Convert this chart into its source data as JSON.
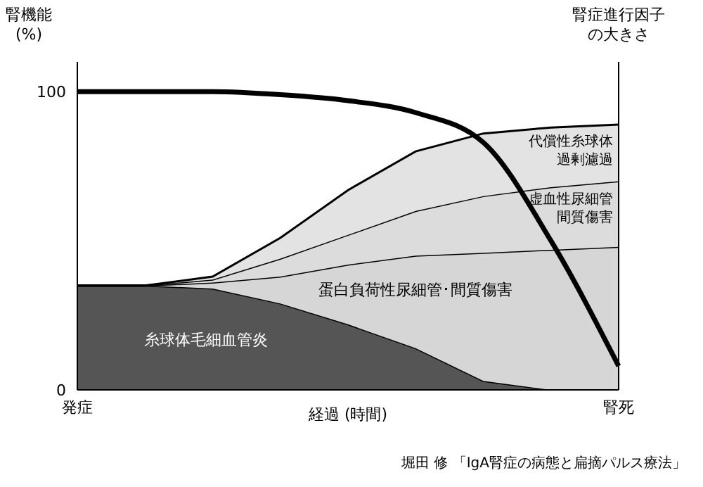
{
  "chart_data": {
    "type": "area",
    "stacked": true,
    "ylabel": "腎機能\n(%)",
    "y2label": "腎症進行因子の大きさ",
    "xlabel": "経過 (時間)",
    "categories": [
      "発症",
      null,
      null,
      null,
      null,
      null,
      null,
      null,
      "腎死"
    ],
    "ylim": [
      0,
      110
    ],
    "yticks": [
      0,
      100
    ],
    "annotations": [
      "堀田 修 「IgA腎症の病態と扁摘パルス療法」"
    ],
    "series": [
      {
        "name": "糸球体毛細血管炎",
        "color": "#555555",
        "values": [
          35,
          35,
          34,
          29,
          22,
          14,
          3,
          0,
          0
        ]
      },
      {
        "name": "蛋白負荷性尿細管･間質傷害",
        "color": "#d6d6d6",
        "values": [
          0,
          0,
          2,
          9,
          20,
          31,
          43,
          47,
          48
        ]
      },
      {
        "name": "虚血性尿細管間質傷害",
        "color": "#dcdcdc",
        "values": [
          0,
          0,
          1,
          6,
          10,
          15,
          19,
          21,
          22
        ]
      },
      {
        "name": "代償性糸球体過剰濾過",
        "color": "#e3e3e3",
        "values": [
          0,
          0,
          1,
          7,
          15,
          20,
          21,
          20,
          19
        ]
      },
      {
        "type": "line",
        "color": "#000000",
        "values": [
          100,
          100,
          100,
          99,
          97,
          93,
          83,
          50,
          8
        ]
      }
    ]
  }
}
